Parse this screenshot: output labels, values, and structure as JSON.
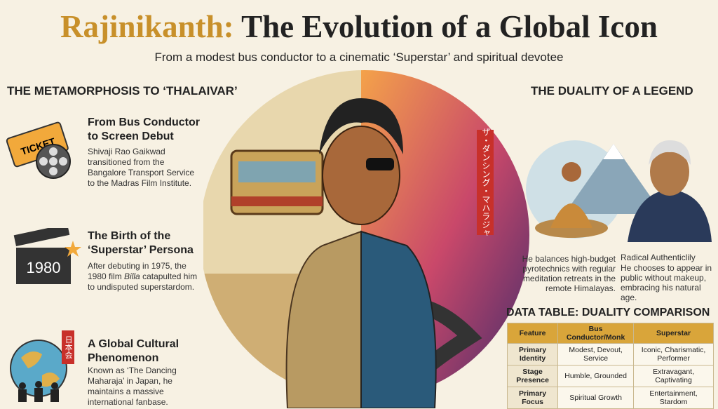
{
  "header": {
    "title_name": "Rajinikanth:",
    "title_rest": "The Evolution of a Global Icon",
    "subtitle": "From a modest bus conductor to a cinematic ‘Superstar’ and spiritual devotee"
  },
  "left": {
    "heading": "THE METAMORPHOSIS TO ‘THALAIVAR’",
    "items": [
      {
        "icon_text": "TICKET",
        "title": "From Bus Conductor to Screen Debut",
        "text": "Shivaji Rao Gaikwad transitioned from the Bangalore Transport Service to the Madras Film Institute."
      },
      {
        "icon_text": "1980",
        "title": "The Birth of the ‘Superstar’ Persona",
        "text_before": "After debuting in 1975, the 1980 film",
        "film": "Billa",
        "text_after": "catapulted him to undisputed superstardom."
      },
      {
        "icon_text": "日本会",
        "title": "A Global Cultural Phenomenon",
        "text": "Known as ‘The Dancing Maharaja’ in Japan, he maintains a massive international fanbase."
      }
    ]
  },
  "center": {
    "sign": "ザ・ダンシング・マハラジャ"
  },
  "right": {
    "heading": "THE DUALITY OF A LEGEND",
    "caption_left": "He balances high-budget pyrotechnics with regular meditation retreats in the remote Himalayas.",
    "caption_right_title": "Radical Authenticlily",
    "caption_right_text": "He chooses to appear in public without makeup, embracing his natural age."
  },
  "table": {
    "title": "DATA TABLE: DUALITY COMPARISON",
    "header": [
      "Feature",
      "Bus Conductor/Monk",
      "Superstar"
    ],
    "rows": [
      [
        "Primary Identity",
        "Modest, Devout, Service",
        "Iconic, Charismatic, Performer"
      ],
      [
        "Stage Presence",
        "Humble, Grounded",
        "Extravagant, Captivating"
      ],
      [
        "Primary Focus",
        "Spiritual Growth",
        "Entertainment, Stardom"
      ]
    ]
  }
}
